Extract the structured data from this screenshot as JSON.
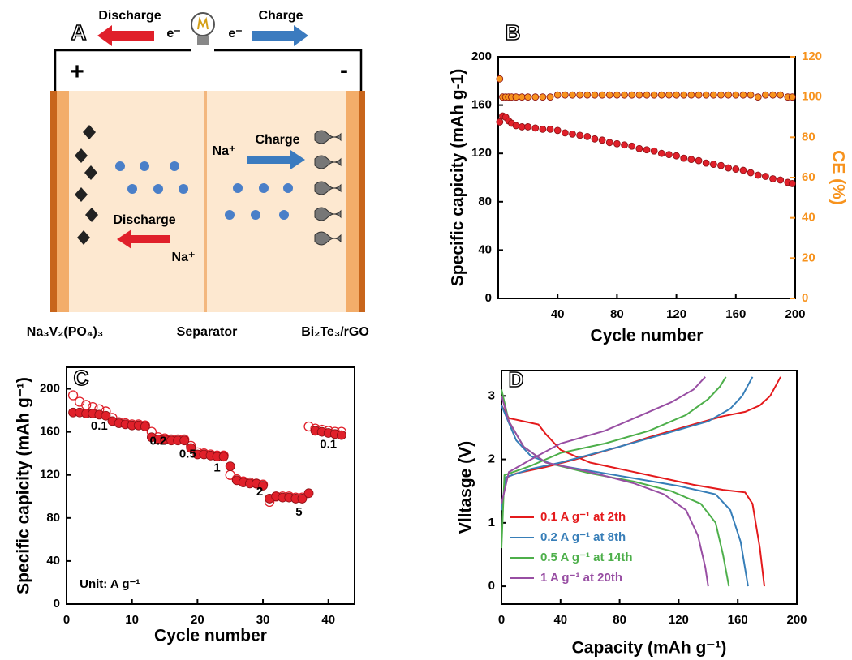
{
  "diagram": {
    "panel": "A",
    "top": {
      "discharge": "Discharge",
      "electron_left": "e⁻",
      "electron_right": "e⁻",
      "charge": "Charge"
    },
    "terminals": {
      "positive": "+",
      "negative": "-"
    },
    "inner": {
      "ion_right": "Na⁺",
      "charge": "Charge",
      "discharge": "Discharge",
      "ion_left": "Na⁺"
    },
    "labels": {
      "cathode": "Na₃V₂(PO₄)₃",
      "separator": "Separator",
      "anode": "Bi₂Te₃/rGO"
    }
  },
  "chart_data": [
    {
      "type": "scatter",
      "panel": "B",
      "x_label": "Cycle number",
      "y_label": "Specific capicity (mAh g-1)",
      "y2_label": "CE (%)",
      "x": [
        1,
        3,
        5,
        7,
        9,
        12,
        16,
        20,
        25,
        30,
        35,
        40,
        45,
        50,
        55,
        60,
        65,
        70,
        75,
        80,
        85,
        90,
        95,
        100,
        105,
        110,
        115,
        120,
        125,
        130,
        135,
        140,
        145,
        150,
        155,
        160,
        165,
        170,
        175,
        180,
        185,
        190,
        195,
        198
      ],
      "series": [
        {
          "color": "#e0202a",
          "marker": "filled",
          "values": [
            146,
            151,
            150,
            147,
            145,
            143,
            142,
            142,
            141,
            140,
            140,
            139,
            137,
            136,
            135,
            134,
            132,
            131,
            129,
            128,
            127,
            126,
            124,
            123,
            122,
            120,
            119,
            118,
            116,
            115,
            114,
            112,
            111,
            110,
            108,
            107,
            106,
            104,
            102,
            101,
            99,
            98,
            96,
            95
          ]
        },
        {
          "color": "#f7931e",
          "marker": "filled",
          "axis": "y2",
          "values": [
            109,
            100,
            100,
            100,
            100,
            100,
            100,
            100,
            100,
            100,
            100,
            101,
            101,
            101,
            101,
            101,
            101,
            101,
            101,
            101,
            101,
            101,
            101,
            101,
            101,
            101,
            101,
            101,
            101,
            101,
            101,
            101,
            101,
            101,
            101,
            101,
            101,
            101,
            100,
            101,
            101,
            101,
            100,
            100
          ]
        }
      ],
      "xlim": [
        0,
        200
      ],
      "xticks": [
        40,
        80,
        120,
        160,
        200
      ],
      "ylim": [
        0,
        200
      ],
      "yticks": [
        0,
        40,
        80,
        120,
        160,
        200
      ],
      "y2lim": [
        0,
        120
      ],
      "y2ticks": [
        0,
        20,
        40,
        60,
        80,
        100,
        120
      ]
    },
    {
      "type": "scatter",
      "panel": "C",
      "x_label": "Cycle number",
      "y_label": "Specific capicity (mAh g⁻¹)",
      "x": [
        1,
        2,
        3,
        4,
        5,
        6,
        7,
        8,
        9,
        10,
        11,
        12,
        13,
        14,
        15,
        16,
        17,
        18,
        19,
        20,
        21,
        22,
        23,
        24,
        25,
        26,
        27,
        28,
        29,
        30,
        31,
        32,
        33,
        34,
        35,
        36,
        37,
        38,
        39,
        40,
        41,
        42
      ],
      "series": [
        {
          "color": "#e0202a",
          "marker": "open",
          "values": [
            194,
            188,
            185,
            183,
            181,
            179,
            173,
            169,
            168,
            167,
            167,
            166,
            160,
            155,
            154,
            153,
            153,
            153,
            147,
            141,
            140,
            139,
            138,
            138,
            120,
            116,
            114,
            113,
            112,
            111,
            95,
            100,
            100,
            100,
            99,
            99,
            165,
            163,
            162,
            161,
            160,
            160
          ]
        },
        {
          "color": "#e0202a",
          "marker": "filled",
          "values": [
            178,
            178,
            177,
            177,
            176,
            175,
            170,
            168,
            167,
            166,
            166,
            165,
            155,
            153,
            153,
            152,
            152,
            152,
            145,
            139,
            139,
            138,
            137,
            137,
            128,
            115,
            113,
            112,
            112,
            110,
            98,
            100,
            99,
            99,
            98,
            98,
            103,
            161,
            160,
            159,
            158,
            157
          ]
        }
      ],
      "annotations": [
        "0.1",
        "0.2",
        "0.5",
        "1",
        "2",
        "5",
        "0.1",
        "Unit: A g⁻¹"
      ],
      "xlim": [
        0,
        44
      ],
      "xticks": [
        0,
        10,
        20,
        30,
        40
      ],
      "ylim": [
        0,
        220
      ],
      "yticks": [
        0,
        40,
        80,
        120,
        160,
        200
      ]
    },
    {
      "type": "line",
      "panel": "D",
      "x_label": "Capacity (mAh g⁻¹)",
      "y_label": "Vlltasge (V)",
      "legend": "lower left",
      "series": [
        {
          "name": "0.1 A g⁻¹ at 2th",
          "color": "#e41a1c",
          "x": [
            0,
            5,
            15,
            25,
            30,
            40,
            60,
            80,
            100,
            130,
            150,
            165,
            170,
            175,
            178,
            null,
            2,
            10,
            30,
            50,
            80,
            100,
            130,
            150,
            165,
            175,
            182,
            189
          ],
          "values": [
            2.85,
            2.65,
            2.6,
            2.55,
            2.4,
            2.15,
            1.95,
            1.85,
            1.75,
            1.6,
            1.52,
            1.48,
            1.3,
            0.6,
            0,
            null,
            1.7,
            1.78,
            1.88,
            2.0,
            2.2,
            2.35,
            2.55,
            2.68,
            2.75,
            2.85,
            3.0,
            3.3
          ]
        },
        {
          "name": "0.2 A g⁻¹ at 8th",
          "color": "#377eb8",
          "x": [
            0,
            10,
            20,
            35,
            60,
            90,
            120,
            145,
            155,
            162,
            167,
            null,
            0,
            3,
            20,
            40,
            80,
            110,
            140,
            155,
            163,
            170
          ],
          "values": [
            2.85,
            2.3,
            2.05,
            1.92,
            1.82,
            1.7,
            1.58,
            1.45,
            1.2,
            0.7,
            0,
            null,
            1.2,
            1.72,
            1.85,
            1.95,
            2.2,
            2.4,
            2.6,
            2.8,
            3.0,
            3.3
          ]
        },
        {
          "name": "0.5 A g⁻¹ at 14th",
          "color": "#4daf4a",
          "x": [
            0,
            5,
            15,
            30,
            60,
            90,
            115,
            135,
            145,
            150,
            154,
            null,
            0,
            2,
            20,
            40,
            70,
            100,
            125,
            140,
            148,
            152
          ],
          "values": [
            3.1,
            2.6,
            2.2,
            1.95,
            1.78,
            1.65,
            1.5,
            1.3,
            1.0,
            0.5,
            0,
            null,
            0.6,
            1.75,
            1.9,
            2.1,
            2.25,
            2.45,
            2.7,
            2.95,
            3.15,
            3.3
          ]
        },
        {
          "name": "1 A g⁻¹ at 20th",
          "color": "#984ea3",
          "x": [
            0,
            5,
            15,
            30,
            60,
            90,
            110,
            125,
            133,
            138,
            140,
            null,
            0,
            5,
            20,
            40,
            70,
            95,
            115,
            130,
            138
          ],
          "values": [
            3.0,
            2.6,
            2.2,
            1.95,
            1.8,
            1.62,
            1.45,
            1.2,
            0.8,
            0.3,
            0,
            null,
            1.3,
            1.8,
            2.0,
            2.25,
            2.45,
            2.7,
            2.9,
            3.1,
            3.3
          ]
        }
      ],
      "xlim": [
        0,
        200
      ],
      "xticks": [
        0,
        40,
        80,
        120,
        160,
        200
      ],
      "ylim": [
        -0.28,
        3.4
      ],
      "yticks": [
        0,
        1,
        2,
        3
      ]
    }
  ]
}
